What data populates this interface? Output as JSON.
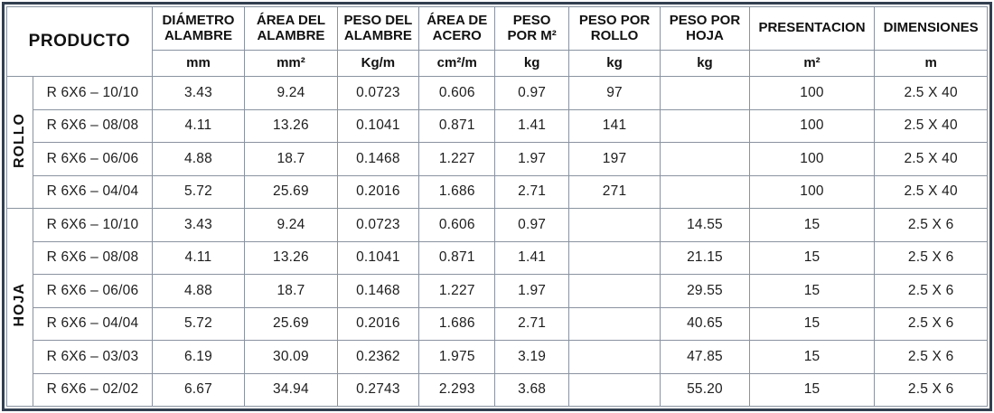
{
  "table": {
    "header": {
      "producto_label": "PRODUCTO",
      "columns": [
        {
          "label": "DIÁMETRO\nALAMBRE",
          "unit": "mm"
        },
        {
          "label": "ÁREA DEL\nALAMBRE",
          "unit": "mm²"
        },
        {
          "label": "PESO DEL\nALAMBRE",
          "unit": "Kg/m"
        },
        {
          "label": "ÁREA DE\nACERO",
          "unit": "cm²/m"
        },
        {
          "label": "PESO\nPOR M²",
          "unit": "kg"
        },
        {
          "label": "PESO POR\nROLLO",
          "unit": "kg"
        },
        {
          "label": "PESO POR\nHOJA",
          "unit": "kg"
        },
        {
          "label": "PRESENTACION",
          "unit": "m²"
        },
        {
          "label": "DIMENSIONES",
          "unit": "m"
        }
      ]
    },
    "groups": [
      {
        "label": "ROLLO",
        "rows": [
          {
            "producto": "R 6X6 – 10/10",
            "values": [
              "3.43",
              "9.24",
              "0.0723",
              "0.606",
              "0.97",
              "97",
              "",
              "100",
              "2.5 X 40"
            ]
          },
          {
            "producto": "R 6X6 – 08/08",
            "values": [
              "4.11",
              "13.26",
              "0.1041",
              "0.871",
              "1.41",
              "141",
              "",
              "100",
              "2.5 X 40"
            ]
          },
          {
            "producto": "R 6X6 – 06/06",
            "values": [
              "4.88",
              "18.7",
              "0.1468",
              "1.227",
              "1.97",
              "197",
              "",
              "100",
              "2.5 X 40"
            ]
          },
          {
            "producto": "R 6X6 – 04/04",
            "values": [
              "5.72",
              "25.69",
              "0.2016",
              "1.686",
              "2.71",
              "271",
              "",
              "100",
              "2.5 X 40"
            ]
          }
        ]
      },
      {
        "label": "HOJA",
        "rows": [
          {
            "producto": "R 6X6 – 10/10",
            "values": [
              "3.43",
              "9.24",
              "0.0723",
              "0.606",
              "0.97",
              "",
              "14.55",
              "15",
              "2.5 X 6"
            ]
          },
          {
            "producto": "R 6X6 – 08/08",
            "values": [
              "4.11",
              "13.26",
              "0.1041",
              "0.871",
              "1.41",
              "",
              "21.15",
              "15",
              "2.5 X 6"
            ]
          },
          {
            "producto": "R 6X6 – 06/06",
            "values": [
              "4.88",
              "18.7",
              "0.1468",
              "1.227",
              "1.97",
              "",
              "29.55",
              "15",
              "2.5 X 6"
            ]
          },
          {
            "producto": "R 6X6 – 04/04",
            "values": [
              "5.72",
              "25.69",
              "0.2016",
              "1.686",
              "2.71",
              "",
              "40.65",
              "15",
              "2.5 X 6"
            ]
          },
          {
            "producto": "R 6X6 – 03/03",
            "values": [
              "6.19",
              "30.09",
              "0.2362",
              "1.975",
              "3.19",
              "",
              "47.85",
              "15",
              "2.5 X 6"
            ]
          },
          {
            "producto": "R 6X6 – 02/02",
            "values": [
              "6.67",
              "34.94",
              "0.2743",
              "2.293",
              "3.68",
              "",
              "55.20",
              "15",
              "2.5 X 6"
            ]
          }
        ]
      }
    ],
    "colors": {
      "outer_border": "#333f50",
      "grid_line": "#8a93a0",
      "text": "#1d1d1d"
    }
  }
}
